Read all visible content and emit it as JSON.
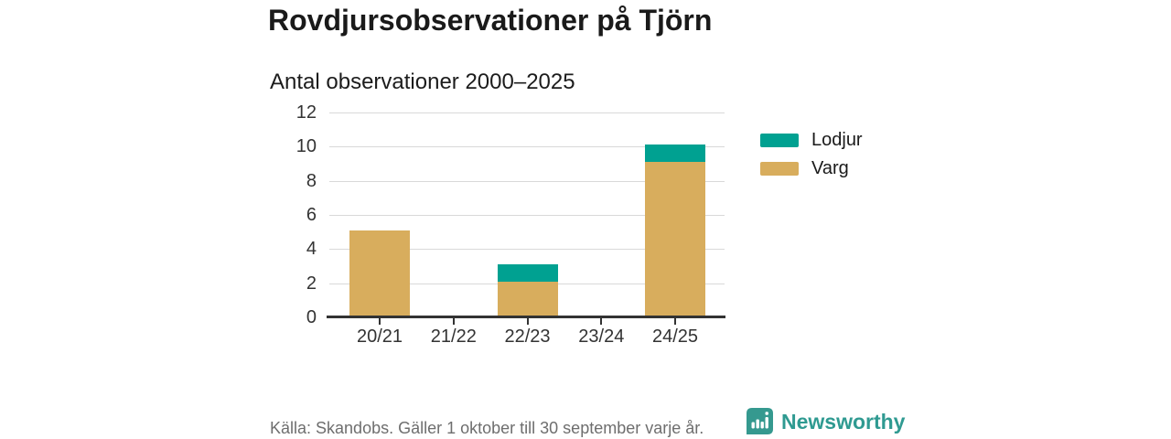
{
  "page": {
    "title": "Rovdjursobservationer på Tjörn",
    "subtitle": "Antal observationer 2000–2025"
  },
  "chart_data": {
    "type": "bar",
    "stacked": true,
    "title": "Rovdjursobservationer på Tjörn",
    "subtitle": "Antal observationer 2000–2025",
    "categories": [
      "20/21",
      "21/22",
      "22/23",
      "23/24",
      "24/25"
    ],
    "series": [
      {
        "name": "Varg",
        "color": "#d8ad5d",
        "values": [
          5,
          0,
          2,
          0,
          9
        ]
      },
      {
        "name": "Lodjur",
        "color": "#00a191",
        "values": [
          0,
          0,
          1,
          0,
          1
        ]
      }
    ],
    "totals": [
      5,
      0,
      3,
      0,
      10
    ],
    "ylim": [
      0,
      12
    ],
    "yticks": [
      0,
      2,
      4,
      6,
      8,
      10,
      12
    ],
    "grid": "horizontal",
    "legend_position": "right",
    "legend_order": [
      "Lodjur",
      "Varg"
    ]
  },
  "footer": {
    "source": "Källa: Skandobs. Gäller 1 oktober till 30 september varje år.",
    "brand": "Newsworthy"
  },
  "colors": {
    "lodjur": "#00a191",
    "varg": "#d8ad5d",
    "text": "#1a1a1a",
    "axis": "#333333",
    "gridline": "#d9d9d9",
    "muted": "#6e6e6e",
    "brand_teal": "#2f9a91",
    "logo_teal": "#35998f"
  }
}
